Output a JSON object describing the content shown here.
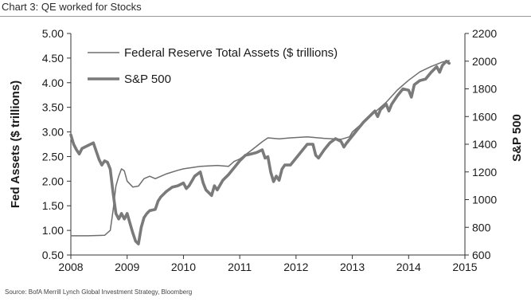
{
  "title": "Chart 3: QE worked for Stocks",
  "source": "Source: BofA Merrill Lynch Global Investment Strategy, Bloomberg",
  "chart_data": {
    "type": "line",
    "x_unit": "year",
    "xlim": [
      2008,
      2015
    ],
    "x_ticks": [
      "2008",
      "2009",
      "2010",
      "2011",
      "2012",
      "2013",
      "2014",
      "2015"
    ],
    "y_left": {
      "label": "Fed Assets ($ trillions)",
      "range": [
        0.5,
        5.0
      ],
      "ticks": [
        "0.50",
        "1.00",
        "1.50",
        "2.00",
        "2.50",
        "3.00",
        "3.50",
        "4.00",
        "4.50",
        "5.00"
      ]
    },
    "y_right": {
      "label": "S&P 500",
      "range": [
        600,
        2200
      ],
      "ticks": [
        "600",
        "800",
        "1000",
        "1200",
        "1400",
        "1600",
        "1800",
        "2000",
        "2200"
      ]
    },
    "legend_position": "top-left",
    "grid": false,
    "colors": {
      "fed": "#6e6e6e",
      "spx": "#7a7a7a"
    },
    "series": [
      {
        "name": "Federal Reserve Total Assets ($ trillions)",
        "axis": "left",
        "style": "thin",
        "points": [
          [
            2008.0,
            0.89
          ],
          [
            2008.3,
            0.89
          ],
          [
            2008.6,
            0.9
          ],
          [
            2008.7,
            1.0
          ],
          [
            2008.75,
            1.4
          ],
          [
            2008.8,
            1.9
          ],
          [
            2008.85,
            2.1
          ],
          [
            2008.9,
            2.25
          ],
          [
            2008.95,
            2.21
          ],
          [
            2009.0,
            2.0
          ],
          [
            2009.1,
            1.88
          ],
          [
            2009.2,
            1.9
          ],
          [
            2009.3,
            2.05
          ],
          [
            2009.4,
            2.1
          ],
          [
            2009.5,
            2.05
          ],
          [
            2009.7,
            2.15
          ],
          [
            2009.9,
            2.22
          ],
          [
            2010.0,
            2.25
          ],
          [
            2010.3,
            2.3
          ],
          [
            2010.6,
            2.32
          ],
          [
            2010.8,
            2.3
          ],
          [
            2010.9,
            2.4
          ],
          [
            2011.0,
            2.45
          ],
          [
            2011.2,
            2.62
          ],
          [
            2011.4,
            2.8
          ],
          [
            2011.5,
            2.88
          ],
          [
            2011.7,
            2.86
          ],
          [
            2011.9,
            2.88
          ],
          [
            2012.2,
            2.9
          ],
          [
            2012.5,
            2.87
          ],
          [
            2012.8,
            2.85
          ],
          [
            2012.95,
            2.9
          ],
          [
            2013.0,
            3.0
          ],
          [
            2013.2,
            3.2
          ],
          [
            2013.4,
            3.4
          ],
          [
            2013.6,
            3.6
          ],
          [
            2013.8,
            3.85
          ],
          [
            2014.0,
            4.05
          ],
          [
            2014.2,
            4.22
          ],
          [
            2014.4,
            4.33
          ],
          [
            2014.6,
            4.42
          ],
          [
            2014.72,
            4.45
          ]
        ]
      },
      {
        "name": "S&P 500",
        "axis": "right",
        "style": "thick",
        "points": [
          [
            2008.0,
            1468
          ],
          [
            2008.05,
            1400
          ],
          [
            2008.1,
            1360
          ],
          [
            2008.15,
            1330
          ],
          [
            2008.2,
            1370
          ],
          [
            2008.3,
            1390
          ],
          [
            2008.4,
            1410
          ],
          [
            2008.5,
            1290
          ],
          [
            2008.55,
            1250
          ],
          [
            2008.6,
            1280
          ],
          [
            2008.65,
            1270
          ],
          [
            2008.7,
            1220
          ],
          [
            2008.75,
            1050
          ],
          [
            2008.8,
            900
          ],
          [
            2008.85,
            860
          ],
          [
            2008.9,
            900
          ],
          [
            2008.95,
            860
          ],
          [
            2009.0,
            900
          ],
          [
            2009.05,
            830
          ],
          [
            2009.1,
            760
          ],
          [
            2009.15,
            700
          ],
          [
            2009.2,
            680
          ],
          [
            2009.25,
            800
          ],
          [
            2009.3,
            870
          ],
          [
            2009.35,
            900
          ],
          [
            2009.4,
            920
          ],
          [
            2009.5,
            930
          ],
          [
            2009.55,
            990
          ],
          [
            2009.6,
            1020
          ],
          [
            2009.7,
            1060
          ],
          [
            2009.8,
            1090
          ],
          [
            2009.9,
            1100
          ],
          [
            2010.0,
            1120
          ],
          [
            2010.05,
            1080
          ],
          [
            2010.1,
            1100
          ],
          [
            2010.2,
            1170
          ],
          [
            2010.3,
            1200
          ],
          [
            2010.35,
            1120
          ],
          [
            2010.4,
            1070
          ],
          [
            2010.5,
            1030
          ],
          [
            2010.55,
            1100
          ],
          [
            2010.6,
            1070
          ],
          [
            2010.7,
            1140
          ],
          [
            2010.8,
            1180
          ],
          [
            2010.9,
            1230
          ],
          [
            2011.0,
            1280
          ],
          [
            2011.1,
            1320
          ],
          [
            2011.2,
            1330
          ],
          [
            2011.3,
            1340
          ],
          [
            2011.4,
            1360
          ],
          [
            2011.45,
            1300
          ],
          [
            2011.5,
            1310
          ],
          [
            2011.55,
            1200
          ],
          [
            2011.6,
            1130
          ],
          [
            2011.65,
            1170
          ],
          [
            2011.7,
            1140
          ],
          [
            2011.75,
            1220
          ],
          [
            2011.8,
            1250
          ],
          [
            2011.9,
            1250
          ],
          [
            2012.0,
            1300
          ],
          [
            2012.1,
            1350
          ],
          [
            2012.2,
            1400
          ],
          [
            2012.3,
            1400
          ],
          [
            2012.35,
            1320
          ],
          [
            2012.4,
            1300
          ],
          [
            2012.5,
            1360
          ],
          [
            2012.6,
            1410
          ],
          [
            2012.7,
            1440
          ],
          [
            2012.8,
            1420
          ],
          [
            2012.85,
            1380
          ],
          [
            2012.9,
            1410
          ],
          [
            2013.0,
            1460
          ],
          [
            2013.1,
            1510
          ],
          [
            2013.2,
            1560
          ],
          [
            2013.3,
            1600
          ],
          [
            2013.4,
            1640
          ],
          [
            2013.45,
            1600
          ],
          [
            2013.5,
            1650
          ],
          [
            2013.6,
            1690
          ],
          [
            2013.65,
            1640
          ],
          [
            2013.7,
            1690
          ],
          [
            2013.8,
            1750
          ],
          [
            2013.9,
            1800
          ],
          [
            2014.0,
            1790
          ],
          [
            2014.05,
            1740
          ],
          [
            2014.1,
            1830
          ],
          [
            2014.2,
            1860
          ],
          [
            2014.3,
            1870
          ],
          [
            2014.4,
            1920
          ],
          [
            2014.5,
            1960
          ],
          [
            2014.55,
            1920
          ],
          [
            2014.6,
            1970
          ],
          [
            2014.67,
            2000
          ],
          [
            2014.72,
            1985
          ]
        ]
      }
    ]
  }
}
